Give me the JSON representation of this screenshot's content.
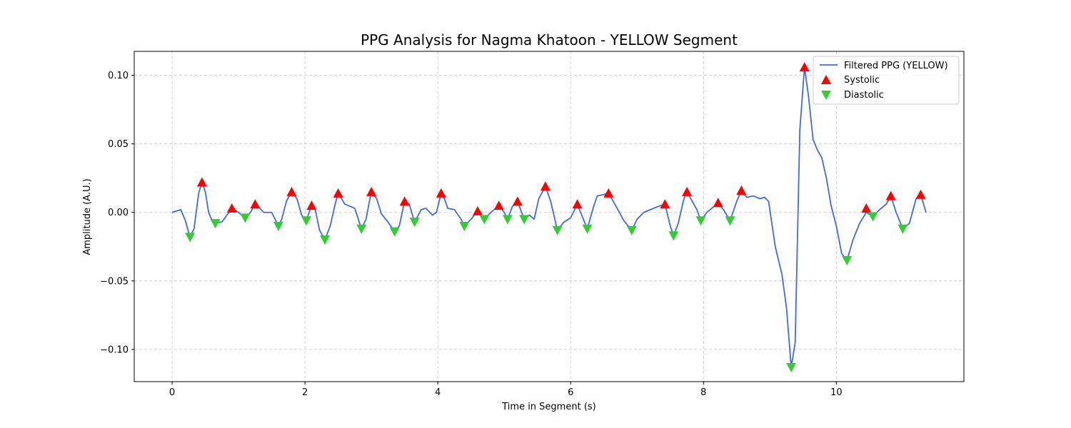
{
  "chart_data": {
    "type": "line",
    "title": "PPG Analysis for Nagma Khatoon - YELLOW Segment",
    "xlabel": "Time in Segment (s)",
    "ylabel": "Amplitude (A.U.)",
    "xlim": [
      -0.57,
      11.92
    ],
    "ylim": [
      -0.1235,
      0.1175
    ],
    "x_ticks": [
      0,
      2,
      4,
      6,
      8,
      10
    ],
    "y_ticks": [
      -0.1,
      -0.05,
      0.0,
      0.05,
      0.1
    ],
    "x_tick_labels": [
      "0",
      "2",
      "4",
      "6",
      "8",
      "10"
    ],
    "y_tick_labels": [
      "−0.10",
      "−0.05",
      "0.00",
      "0.05",
      "0.10"
    ],
    "grid": true,
    "legend_position": "top-right",
    "colors": {
      "signal": "#4169e1",
      "systolic": "#ff0000",
      "diastolic": "#32cd32"
    },
    "series": [
      {
        "name": "Filtered PPG (YELLOW)",
        "kind": "line",
        "points": [
          [
            0.0,
            0.0
          ],
          [
            0.13,
            0.002
          ],
          [
            0.2,
            -0.006
          ],
          [
            0.27,
            -0.018
          ],
          [
            0.33,
            -0.012
          ],
          [
            0.4,
            0.014
          ],
          [
            0.45,
            0.022
          ],
          [
            0.5,
            0.015
          ],
          [
            0.55,
            0.0
          ],
          [
            0.62,
            -0.008
          ],
          [
            0.75,
            -0.007
          ],
          [
            0.9,
            0.003
          ],
          [
            1.0,
            0.0
          ],
          [
            1.1,
            -0.004
          ],
          [
            1.18,
            0.0
          ],
          [
            1.25,
            0.006
          ],
          [
            1.3,
            0.004
          ],
          [
            1.38,
            0.0
          ],
          [
            1.5,
            0.0
          ],
          [
            1.6,
            -0.01
          ],
          [
            1.65,
            -0.005
          ],
          [
            1.72,
            0.008
          ],
          [
            1.8,
            0.015
          ],
          [
            1.88,
            0.01
          ],
          [
            1.95,
            -0.002
          ],
          [
            2.02,
            -0.006
          ],
          [
            2.1,
            0.005
          ],
          [
            2.15,
            0.003
          ],
          [
            2.22,
            -0.013
          ],
          [
            2.3,
            -0.02
          ],
          [
            2.38,
            -0.01
          ],
          [
            2.45,
            0.005
          ],
          [
            2.5,
            0.014
          ],
          [
            2.6,
            0.006
          ],
          [
            2.75,
            0.003
          ],
          [
            2.85,
            -0.012
          ],
          [
            2.92,
            -0.005
          ],
          [
            2.97,
            0.008
          ],
          [
            3.0,
            0.015
          ],
          [
            3.08,
            0.01
          ],
          [
            3.15,
            -0.001
          ],
          [
            3.25,
            -0.007
          ],
          [
            3.35,
            -0.014
          ],
          [
            3.42,
            -0.01
          ],
          [
            3.5,
            0.008
          ],
          [
            3.57,
            0.006
          ],
          [
            3.65,
            -0.007
          ],
          [
            3.75,
            0.002
          ],
          [
            3.82,
            0.003
          ],
          [
            3.92,
            -0.002
          ],
          [
            3.98,
            0.0
          ],
          [
            4.05,
            0.014
          ],
          [
            4.1,
            0.01
          ],
          [
            4.15,
            0.003
          ],
          [
            4.25,
            0.002
          ],
          [
            4.35,
            -0.005
          ],
          [
            4.4,
            -0.01
          ],
          [
            4.5,
            -0.005
          ],
          [
            4.6,
            0.001
          ],
          [
            4.7,
            -0.005
          ],
          [
            4.8,
            0.0
          ],
          [
            4.92,
            0.005
          ],
          [
            5.0,
            0.0
          ],
          [
            5.05,
            -0.005
          ],
          [
            5.12,
            0.004
          ],
          [
            5.2,
            0.008
          ],
          [
            5.3,
            -0.005
          ],
          [
            5.38,
            -0.002
          ],
          [
            5.45,
            -0.005
          ],
          [
            5.52,
            0.01
          ],
          [
            5.62,
            0.019
          ],
          [
            5.7,
            0.008
          ],
          [
            5.8,
            -0.013
          ],
          [
            5.9,
            -0.007
          ],
          [
            6.0,
            -0.004
          ],
          [
            6.1,
            0.006
          ],
          [
            6.25,
            -0.012
          ],
          [
            6.35,
            0.005
          ],
          [
            6.4,
            0.012
          ],
          [
            6.5,
            0.013
          ],
          [
            6.57,
            0.014
          ],
          [
            6.7,
            0.003
          ],
          [
            6.8,
            -0.006
          ],
          [
            6.92,
            -0.013
          ],
          [
            7.0,
            -0.005
          ],
          [
            7.1,
            0.0
          ],
          [
            7.2,
            0.002
          ],
          [
            7.3,
            0.004
          ],
          [
            7.42,
            0.006
          ],
          [
            7.5,
            -0.01
          ],
          [
            7.55,
            -0.017
          ],
          [
            7.62,
            -0.008
          ],
          [
            7.7,
            0.009
          ],
          [
            7.75,
            0.015
          ],
          [
            7.82,
            0.009
          ],
          [
            7.9,
            0.002
          ],
          [
            7.96,
            -0.006
          ],
          [
            8.05,
            0.0
          ],
          [
            8.15,
            0.004
          ],
          [
            8.22,
            0.007
          ],
          [
            8.3,
            0.002
          ],
          [
            8.4,
            -0.006
          ],
          [
            8.5,
            0.008
          ],
          [
            8.57,
            0.016
          ],
          [
            8.65,
            0.011
          ],
          [
            8.75,
            0.012
          ],
          [
            8.85,
            0.01
          ],
          [
            8.92,
            0.011
          ],
          [
            8.98,
            0.008
          ],
          [
            9.08,
            -0.025
          ],
          [
            9.18,
            -0.045
          ],
          [
            9.25,
            -0.07
          ],
          [
            9.32,
            -0.113
          ],
          [
            9.38,
            -0.095
          ],
          [
            9.45,
            0.06
          ],
          [
            9.52,
            0.106
          ],
          [
            9.58,
            0.085
          ],
          [
            9.65,
            0.053
          ],
          [
            9.72,
            0.045
          ],
          [
            9.78,
            0.04
          ],
          [
            9.85,
            0.025
          ],
          [
            9.92,
            0.005
          ],
          [
            10.0,
            -0.01
          ],
          [
            10.08,
            -0.03
          ],
          [
            10.16,
            -0.035
          ],
          [
            10.25,
            -0.02
          ],
          [
            10.35,
            -0.008
          ],
          [
            10.45,
            0.0
          ],
          [
            10.55,
            -0.003
          ],
          [
            10.65,
            0.002
          ],
          [
            10.75,
            0.006
          ],
          [
            10.82,
            0.012
          ],
          [
            10.9,
            0.0
          ],
          [
            11.0,
            -0.012
          ],
          [
            11.1,
            -0.008
          ],
          [
            11.2,
            0.01
          ],
          [
            11.27,
            0.013
          ],
          [
            11.35,
            0.0
          ]
        ]
      },
      {
        "name": "Systolic",
        "kind": "marker-up",
        "points": [
          [
            0.45,
            0.022
          ],
          [
            0.9,
            0.003
          ],
          [
            1.25,
            0.006
          ],
          [
            1.8,
            0.015
          ],
          [
            2.1,
            0.005
          ],
          [
            2.5,
            0.014
          ],
          [
            3.0,
            0.015
          ],
          [
            3.5,
            0.008
          ],
          [
            4.05,
            0.014
          ],
          [
            4.6,
            0.001
          ],
          [
            4.92,
            0.005
          ],
          [
            5.2,
            0.008
          ],
          [
            5.62,
            0.019
          ],
          [
            6.1,
            0.006
          ],
          [
            6.57,
            0.014
          ],
          [
            7.42,
            0.006
          ],
          [
            7.75,
            0.015
          ],
          [
            8.22,
            0.007
          ],
          [
            8.57,
            0.016
          ],
          [
            9.52,
            0.106
          ],
          [
            10.45,
            0.003
          ],
          [
            10.82,
            0.012
          ],
          [
            11.27,
            0.013
          ]
        ]
      },
      {
        "name": "Diastolic",
        "kind": "marker-down",
        "points": [
          [
            0.27,
            -0.018
          ],
          [
            0.65,
            -0.008
          ],
          [
            1.1,
            -0.004
          ],
          [
            1.6,
            -0.01
          ],
          [
            2.02,
            -0.006
          ],
          [
            2.3,
            -0.02
          ],
          [
            2.85,
            -0.012
          ],
          [
            3.35,
            -0.014
          ],
          [
            3.65,
            -0.007
          ],
          [
            4.4,
            -0.01
          ],
          [
            4.7,
            -0.005
          ],
          [
            5.05,
            -0.005
          ],
          [
            5.3,
            -0.005
          ],
          [
            5.8,
            -0.013
          ],
          [
            6.25,
            -0.012
          ],
          [
            6.92,
            -0.013
          ],
          [
            7.55,
            -0.017
          ],
          [
            7.96,
            -0.006
          ],
          [
            8.4,
            -0.006
          ],
          [
            9.32,
            -0.113
          ],
          [
            10.16,
            -0.035
          ],
          [
            10.55,
            -0.003
          ],
          [
            11.0,
            -0.012
          ]
        ]
      }
    ]
  }
}
